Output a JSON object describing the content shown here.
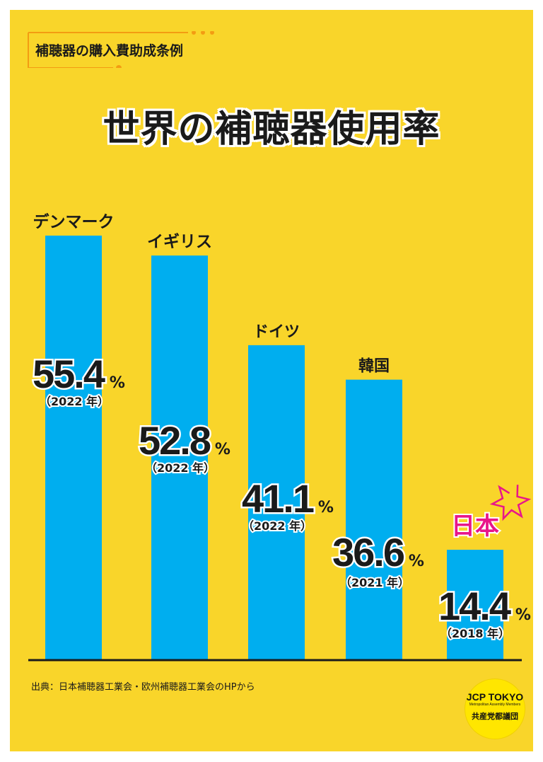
{
  "header": {
    "chip_label": "補聴器の購入費助成条例"
  },
  "title": "世界の補聴器使用率",
  "chart_data": {
    "type": "bar",
    "title": "世界の補聴器使用率",
    "categories": [
      "デンマーク",
      "イギリス",
      "ドイツ",
      "韓国",
      "日本"
    ],
    "values": [
      55.4,
      52.8,
      41.1,
      36.6,
      14.4
    ],
    "value_suffix": "%",
    "years": [
      "（2022 年）",
      "（2022 年）",
      "（2022 年）",
      "（2021 年）",
      "（2018 年）"
    ],
    "highlight_category": "日本",
    "ylim": [
      0,
      60
    ],
    "grid": false,
    "colors": {
      "bar": "#00aeef",
      "background": "#f9d52a",
      "highlight": "#e8168a",
      "text": "#1a1a1a"
    }
  },
  "source": "出典：日本補聴器工業会・欧州補聴器工業会のHPから",
  "badge": {
    "line1": "JCP TOKYO",
    "line2": "Metropolitan Assembly Members",
    "line3": "共産党都議団"
  }
}
